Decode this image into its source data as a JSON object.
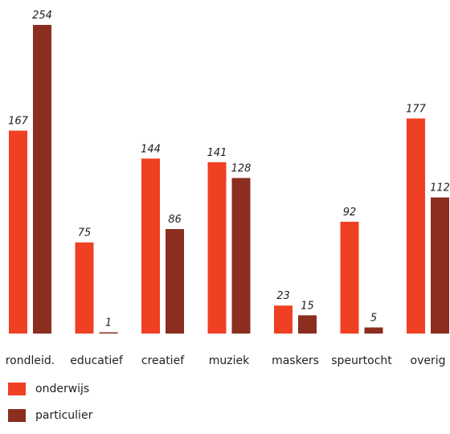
{
  "chart_data": {
    "type": "bar",
    "title": "",
    "xlabel": "",
    "ylabel": "",
    "ylim": [
      0,
      254
    ],
    "grid": false,
    "legend_position": "bottom-left",
    "categories": [
      "rondleid.",
      "educatief",
      "creatief",
      "muziek",
      "maskers",
      "speurtocht",
      "overig"
    ],
    "series": [
      {
        "name": "onderwijs",
        "color": "#ef4023",
        "values": [
          167,
          75,
          144,
          141,
          23,
          92,
          177
        ]
      },
      {
        "name": "particulier",
        "color": "#8b2d1f",
        "values": [
          254,
          1,
          86,
          128,
          15,
          5,
          112
        ]
      }
    ]
  }
}
